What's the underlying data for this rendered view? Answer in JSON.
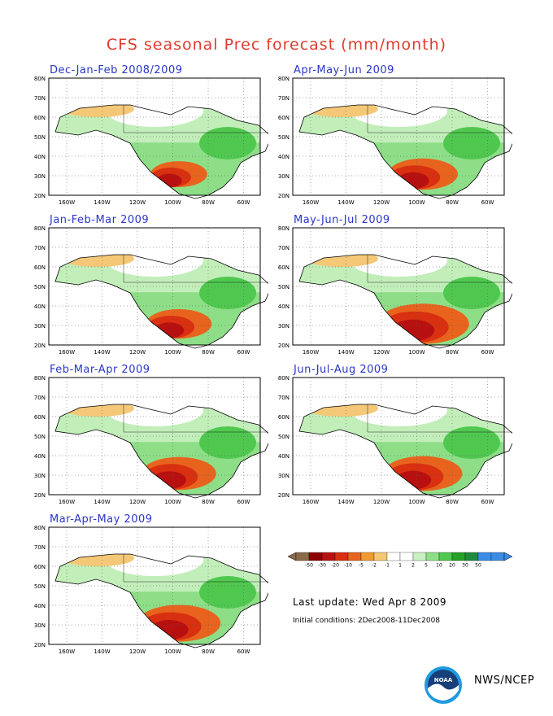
{
  "title": "CFS seasonal Prec forecast (mm/month)",
  "panels": [
    {
      "label": "Dec-Jan-Feb 2008/2009",
      "dry_level": 0.45
    },
    {
      "label": "Apr-May-Jun 2009",
      "dry_level": 0.6
    },
    {
      "label": "Jan-Feb-Mar 2009",
      "dry_level": 0.55
    },
    {
      "label": "May-Jun-Jul 2009",
      "dry_level": 0.85
    },
    {
      "label": "Feb-Mar-Apr 2009",
      "dry_level": 0.65
    },
    {
      "label": "Jun-Jul-Aug 2009",
      "dry_level": 0.7
    },
    {
      "label": "Mar-Apr-May 2009",
      "dry_level": 0.75
    }
  ],
  "axes": {
    "lat_labels": [
      "80N",
      "70N",
      "60N",
      "50N",
      "40N",
      "30N",
      "20N"
    ],
    "lon_labels": [
      "160W",
      "140W",
      "120W",
      "100W",
      "80W",
      "60W"
    ]
  },
  "colorbar": {
    "levels": [
      "-50",
      "-30",
      "-20",
      "-10",
      "-5",
      "-2",
      "-1",
      "1",
      "2",
      "5",
      "10",
      "20",
      "30",
      "50"
    ],
    "colors": [
      "#8b6a4a",
      "#8b0000",
      "#b81010",
      "#d83010",
      "#e8641e",
      "#f09a30",
      "#f5c878",
      "#ffffff",
      "#ffffff",
      "#c8f0c0",
      "#8ede88",
      "#50c850",
      "#28a028",
      "#1e8c3c",
      "#3c8ce6",
      "#3c8ce6"
    ]
  },
  "footer": {
    "last_update": "Last update: Wed Apr 8 2009",
    "initial_conditions": "Initial conditions: 2Dec2008-11Dec2008",
    "agency": "NWS/NCEP"
  }
}
